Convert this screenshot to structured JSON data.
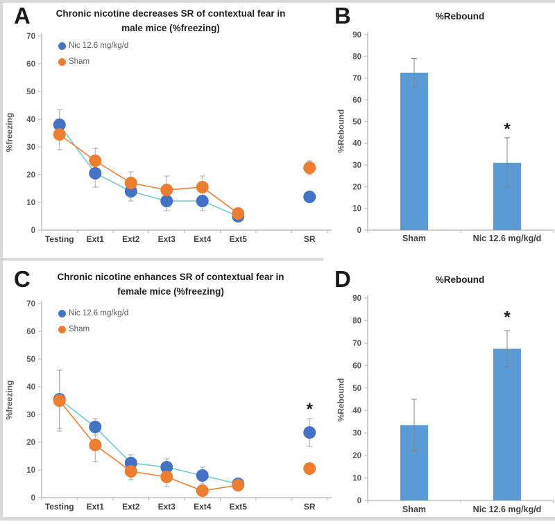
{
  "figure": {
    "panels": [
      {
        "label": "A"
      },
      {
        "label": "B"
      },
      {
        "label": "C"
      },
      {
        "label": "D"
      }
    ]
  },
  "colors": {
    "nic_marker": "#4472C4",
    "nic_line": "#6FC9DB",
    "sham_marker": "#ED7D31",
    "sham_line": "#ED7D31",
    "bar_fill": "#5B9BD5",
    "axis": "#bfbfbf",
    "error_bar": "#a6a6a6",
    "tick_text": "#595959"
  },
  "chart_data": [
    {
      "type": "line",
      "panel": "A",
      "title": "Chronic nicotine decreases SR of contextual fear in male mice (%freezing)",
      "ylabel": "%freezing",
      "ylim": [
        0,
        70
      ],
      "ytick_step": 10,
      "grid": false,
      "legend_position": "top-left",
      "categories": [
        "Testing",
        "Ext1",
        "Ext2",
        "Ext3",
        "Ext4",
        "Ext5",
        "",
        "SR"
      ],
      "series": [
        {
          "name": "Nic 12.6 mg/kg/d",
          "marker_color": "#4472C4",
          "line_color": "#6FC9DB",
          "values": [
            38,
            20.5,
            14,
            10.5,
            10.5,
            5,
            null,
            12
          ],
          "errors": [
            5.5,
            5,
            3.5,
            3.5,
            3.5,
            1.5,
            null,
            2
          ]
        },
        {
          "name": "Sham",
          "marker_color": "#ED7D31",
          "line_color": "#ED7D31",
          "values": [
            34.5,
            25,
            17,
            14.5,
            15.5,
            6,
            null,
            22.5
          ],
          "errors": [
            5.5,
            4.5,
            4,
            5,
            4,
            1.5,
            null,
            2.5
          ]
        }
      ],
      "annotations": []
    },
    {
      "type": "bar",
      "panel": "B",
      "title": "%Rebound",
      "ylabel": "%Rebound",
      "ylim": [
        0,
        90
      ],
      "ytick_step": 10,
      "grid": false,
      "categories": [
        "Sham",
        "Nic 12.6 mg/kg/d"
      ],
      "values": [
        72.5,
        31
      ],
      "errors": [
        6.5,
        11.5
      ],
      "bar_color": "#5B9BD5",
      "annotations": [
        {
          "category_index": 1,
          "y": 44,
          "text": "*"
        }
      ]
    },
    {
      "type": "line",
      "panel": "C",
      "title": "Chronic nicotine enhances SR of contextual fear in female mice (%freezing)",
      "ylabel": "%freezing",
      "ylim": [
        0,
        70
      ],
      "ytick_step": 10,
      "grid": false,
      "legend_position": "top-left",
      "categories": [
        "Testing",
        "Ext1",
        "Ext2",
        "Ext3",
        "Ext4",
        "Ext5",
        "",
        "SR"
      ],
      "series": [
        {
          "name": "Nic 12.6 mg/kg/d",
          "marker_color": "#4472C4",
          "line_color": "#6FC9DB",
          "values": [
            35.5,
            25.5,
            12.5,
            11,
            8,
            5,
            null,
            23.5
          ],
          "errors": [
            10.5,
            3,
            3,
            3,
            3,
            1.5,
            null,
            5
          ]
        },
        {
          "name": "Sham",
          "marker_color": "#ED7D31",
          "line_color": "#ED7D31",
          "values": [
            35,
            19,
            9.5,
            7.5,
            2.5,
            4.5,
            null,
            10.5
          ],
          "errors": [
            11,
            6,
            3,
            3.5,
            1.5,
            1.5,
            null,
            1.5
          ]
        }
      ],
      "annotations": [
        {
          "category_index": 7,
          "y": 30,
          "text": "*"
        }
      ]
    },
    {
      "type": "bar",
      "panel": "D",
      "title": "%Rebound",
      "ylabel": "%Rebound",
      "ylim": [
        0,
        90
      ],
      "ytick_step": 10,
      "grid": false,
      "categories": [
        "Sham",
        "Nic 12.6 mg/kg/d"
      ],
      "values": [
        33.5,
        67.5
      ],
      "errors": [
        11.5,
        8
      ],
      "bar_color": "#5B9BD5",
      "annotations": [
        {
          "category_index": 1,
          "y": 79,
          "text": "*"
        }
      ]
    }
  ]
}
